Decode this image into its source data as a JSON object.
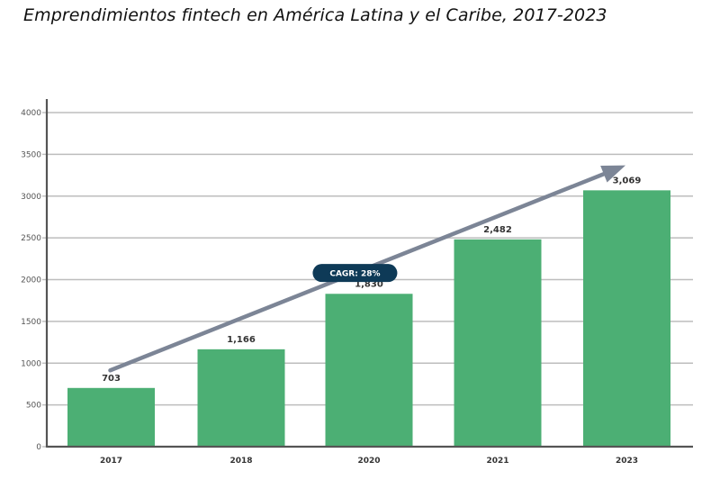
{
  "chart_data": {
    "type": "bar",
    "title": "Emprendimientos fintech en América Latina y el Caribe, 2017-2023",
    "xlabel": "",
    "ylabel": "",
    "categories": [
      "2017",
      "2018",
      "2020",
      "2021",
      "2023"
    ],
    "values": [
      703,
      1166,
      1830,
      2482,
      3069
    ],
    "value_labels": [
      "703",
      "1,166",
      "1,830",
      "2,482",
      "3,069"
    ],
    "ylim": [
      0,
      4000
    ],
    "yticks": [
      0,
      500,
      1000,
      1500,
      2000,
      2500,
      3000,
      3500,
      4000
    ],
    "grid": true,
    "legend": "none",
    "annotations": [
      {
        "type": "trend-arrow",
        "from_category": "2017",
        "to_category": "2023",
        "from_value": 1000,
        "to_value": 3400
      },
      {
        "type": "badge",
        "text": "CAGR: 28%"
      }
    ],
    "colors": {
      "bar": "#4caf74",
      "arrow": "#7c8596",
      "badge": "#0e3a57",
      "grid": "#bdbdbd",
      "axis": "#555555"
    }
  }
}
